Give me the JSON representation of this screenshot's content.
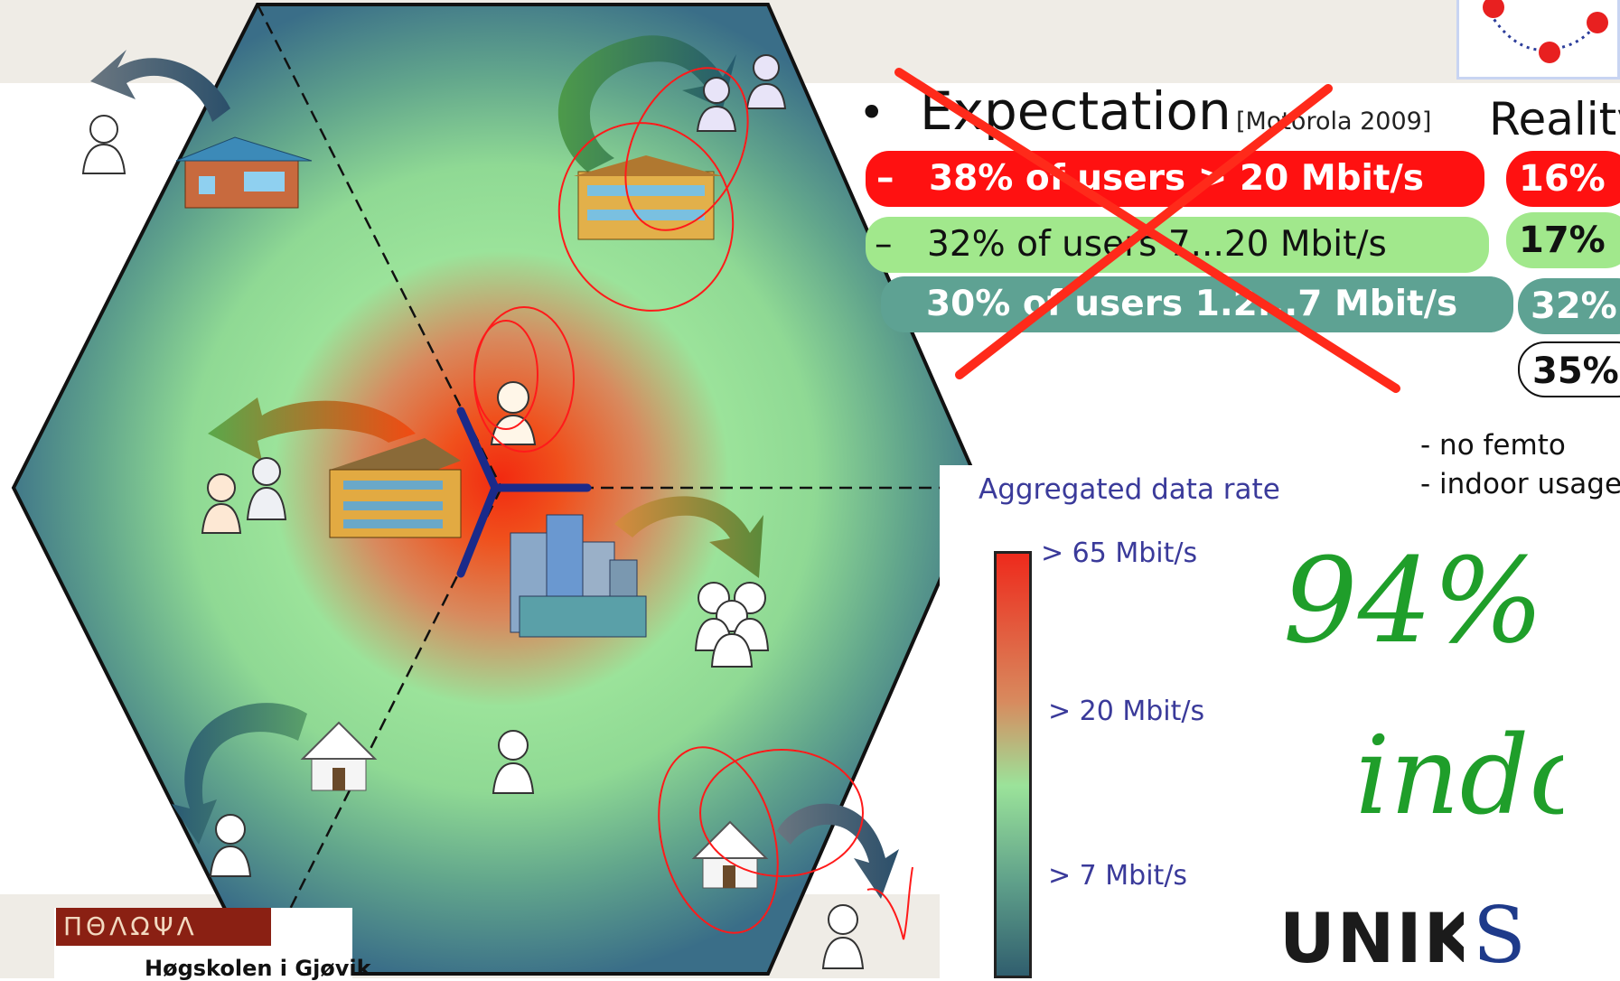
{
  "slide": {
    "expectation": {
      "bullet": "•",
      "title": "Expectation",
      "citation": "[Motorola 2009]",
      "items": [
        {
          "dash": "–",
          "text": "38% of users > 20 Mbit/s",
          "color": "#ff1111"
        },
        {
          "dash": "–",
          "text": "32% of users 7...20 Mbit/s",
          "color": "#a1e88c"
        },
        {
          "dash": "",
          "text": "30% of users 1.2...7 Mbit/s",
          "color": "#5ea293"
        }
      ]
    },
    "reality": {
      "title": "Reality",
      "values": [
        "16%",
        "17%",
        "32%",
        "35%"
      ],
      "notes": [
        "- no femto",
        "- indoor usage"
      ]
    },
    "legend": {
      "title": "Aggregated data rate",
      "labels": [
        "> 65 Mbit/s",
        "> 20 Mbit/s",
        "> 7 Mbit/s"
      ],
      "gradient": [
        "#ee2a1c",
        "#d88a5e",
        "#9be39a",
        "#5fa08a",
        "#305e6e"
      ]
    },
    "handwriting": {
      "line1": "94%",
      "line2": "indoor",
      "color": "#1f9e2a"
    },
    "annotation_color": "#ff1a1a",
    "logos": {
      "left_strip": "ΠΘΛΩΨΛ",
      "left_text": "Høgskolen i Gjøvik",
      "unik": "UNIK",
      "s": "S"
    }
  }
}
